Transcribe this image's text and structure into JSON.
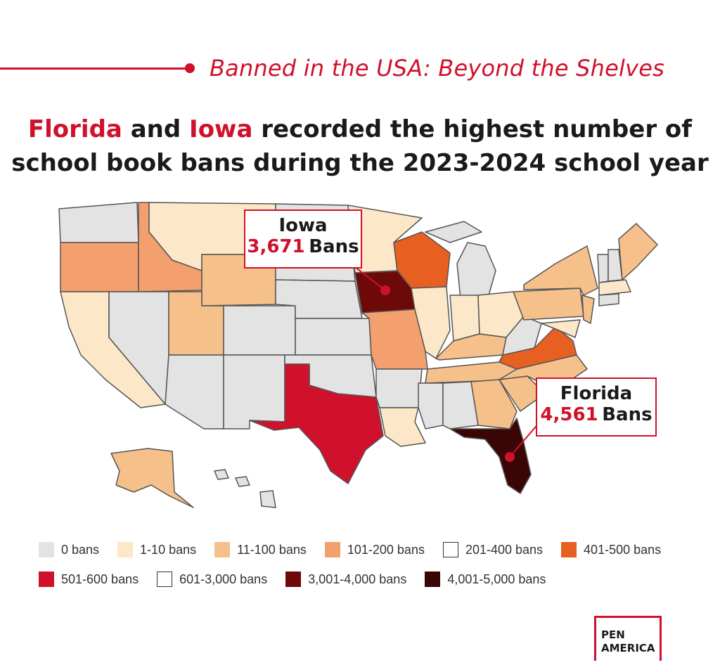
{
  "header": {
    "series_title": "Banned in the USA: Beyond the Shelves",
    "headline_part1": "Florida",
    "headline_part2": " and ",
    "headline_part3": "Iowa",
    "headline_part4": " recorded the highest number of",
    "headline_line2": "school book bans during the 2023-2024 school year"
  },
  "callouts": {
    "iowa": {
      "state": "Iowa",
      "count": "3,671",
      "unit": "Bans"
    },
    "florida": {
      "state": "Florida",
      "count": "4,561",
      "unit": "Bans"
    }
  },
  "legend": [
    {
      "label": "0 bans",
      "color": "#e3e3e3"
    },
    {
      "label": "1-10 bans",
      "color": "#fce8c8"
    },
    {
      "label": "11-100 bans",
      "color": "#f6c08a"
    },
    {
      "label": "101-200 bans",
      "color": "#f4a06e"
    },
    {
      "label": "201-400 bans",
      "color": "#ffffff"
    },
    {
      "label": "401-500 bans",
      "color": "#e85f22"
    },
    {
      "label": "501-600 bans",
      "color": "#d0112b"
    },
    {
      "label": "601-3,000 bans",
      "color": "#ffffff"
    },
    {
      "label": "3,001-4,000 bans",
      "color": "#6e0909"
    },
    {
      "label": "4,001-5,000 bans",
      "color": "#3a0505"
    }
  ],
  "colors": {
    "accent": "#d0112b",
    "state_border": "#555555"
  },
  "logo": {
    "line1": "PEN",
    "line2": "AMERICA"
  }
}
